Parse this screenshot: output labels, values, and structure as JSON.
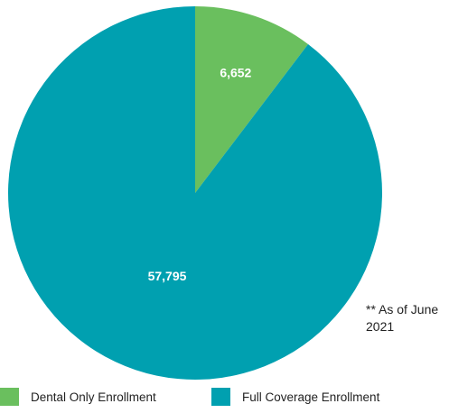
{
  "chart_data": {
    "type": "pie",
    "title": "",
    "categories": [
      "Dental Only Enrollment",
      "Full Coverage Enrollment"
    ],
    "values": [
      6652,
      57795
    ],
    "value_labels": [
      "6,652",
      "57,795"
    ],
    "colors": [
      "#6abf5e",
      "#00a0b0"
    ],
    "legend_position": "bottom",
    "note": "** As of June 2021"
  }
}
